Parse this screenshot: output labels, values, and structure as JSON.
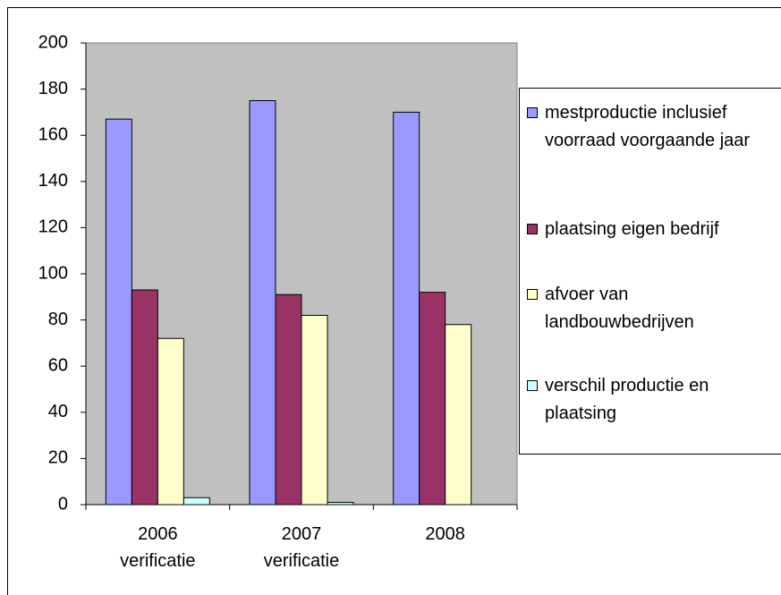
{
  "chart_data": {
    "type": "bar",
    "categories": [
      "2006 verificatie",
      "2007 verificatie",
      "2008"
    ],
    "series": [
      {
        "name": "mestproductie inclusief voorraad voorgaande jaar",
        "color": "#9999ff",
        "values": [
          167,
          175,
          170
        ]
      },
      {
        "name": "plaatsing eigen bedrijf",
        "color": "#993366",
        "values": [
          93,
          91,
          92
        ]
      },
      {
        "name": "afvoer van landbouwbedrijven",
        "color": "#ffffcc",
        "values": [
          72,
          82,
          78
        ]
      },
      {
        "name": "verschil productie en plaatsing",
        "color": "#ccffff",
        "values": [
          3,
          1,
          0
        ]
      }
    ],
    "ylim": [
      0,
      200
    ],
    "yticks": [
      0,
      20,
      40,
      60,
      80,
      100,
      120,
      140,
      160,
      180,
      200
    ],
    "plot_background": "#c0c0c0"
  }
}
